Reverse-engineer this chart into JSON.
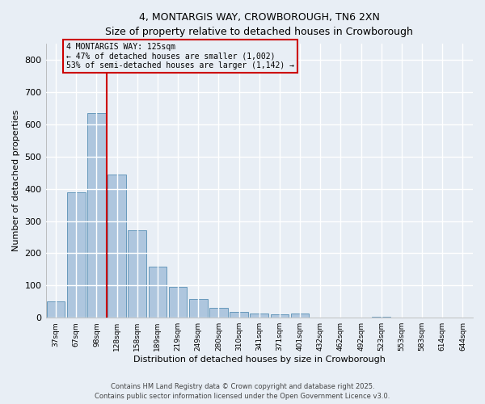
{
  "title_line1": "4, MONTARGIS WAY, CROWBOROUGH, TN6 2XN",
  "title_line2": "Size of property relative to detached houses in Crowborough",
  "xlabel": "Distribution of detached houses by size in Crowborough",
  "ylabel": "Number of detached properties",
  "bar_labels": [
    "37sqm",
    "67sqm",
    "98sqm",
    "128sqm",
    "158sqm",
    "189sqm",
    "219sqm",
    "249sqm",
    "280sqm",
    "310sqm",
    "341sqm",
    "371sqm",
    "401sqm",
    "432sqm",
    "462sqm",
    "492sqm",
    "523sqm",
    "553sqm",
    "583sqm",
    "614sqm",
    "644sqm"
  ],
  "bar_values": [
    50,
    390,
    635,
    445,
    270,
    158,
    97,
    58,
    30,
    18,
    12,
    10,
    12,
    0,
    0,
    0,
    3,
    0,
    0,
    0,
    0
  ],
  "bar_color": "#aec6de",
  "bar_edge_color": "#6699bb",
  "background_color": "#e8eef5",
  "grid_color": "#ffffff",
  "vline_color": "#cc0000",
  "vline_x_index": 2.5,
  "annotation_text": "4 MONTARGIS WAY: 125sqm\n← 47% of detached houses are smaller (1,002)\n53% of semi-detached houses are larger (1,142) →",
  "annotation_box_color": "#cc0000",
  "ylim": [
    0,
    850
  ],
  "yticks": [
    0,
    100,
    200,
    300,
    400,
    500,
    600,
    700,
    800
  ],
  "footer_line1": "Contains HM Land Registry data © Crown copyright and database right 2025.",
  "footer_line2": "Contains public sector information licensed under the Open Government Licence v3.0."
}
